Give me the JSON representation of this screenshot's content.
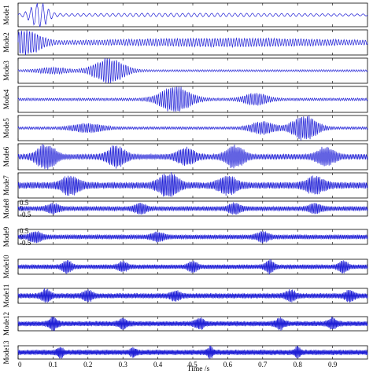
{
  "chart_data": {
    "type": "line",
    "xlabel": "Time /s",
    "xlim": [
      0,
      1.0
    ],
    "x_ticks": [
      0,
      0.1,
      0.2,
      0.3,
      0.4,
      0.5,
      0.6,
      0.7,
      0.8,
      0.9
    ],
    "x_tick_labels": [
      "0",
      "0.1",
      "0.2",
      "0.3",
      "0.4",
      "0.5",
      "0.6",
      "0.7",
      "0.8",
      "0.9"
    ],
    "line_color": "#1f1fd6",
    "series": [
      {
        "name": "Mode1",
        "carrier_cycles": 60,
        "bursts": [
          {
            "t": 0.06,
            "amp": 1.0,
            "w": 0.03
          },
          {
            "t": 0.5,
            "amp": 0.1,
            "w": 0.5
          }
        ],
        "base": 0.05
      },
      {
        "name": "Mode2",
        "carrier_cycles": 130,
        "bursts": [
          {
            "t": 0.02,
            "amp": 0.95,
            "w": 0.05
          },
          {
            "t": 0.6,
            "amp": 0.25,
            "w": 0.4
          }
        ],
        "base": 0.1
      },
      {
        "name": "Mode3",
        "carrier_cycles": 150,
        "bursts": [
          {
            "t": 0.26,
            "amp": 0.95,
            "w": 0.05
          },
          {
            "t": 0.1,
            "amp": 0.2,
            "w": 0.05
          }
        ],
        "base": 0.08
      },
      {
        "name": "Mode4",
        "carrier_cycles": 170,
        "bursts": [
          {
            "t": 0.45,
            "amp": 0.95,
            "w": 0.05
          },
          {
            "t": 0.68,
            "amp": 0.4,
            "w": 0.04
          }
        ],
        "base": 0.1
      },
      {
        "name": "Mode5",
        "carrier_cycles": 190,
        "bursts": [
          {
            "t": 0.82,
            "amp": 0.95,
            "w": 0.04
          },
          {
            "t": 0.7,
            "amp": 0.45,
            "w": 0.04
          },
          {
            "t": 0.2,
            "amp": 0.3,
            "w": 0.05
          }
        ],
        "base": 0.1
      },
      {
        "name": "Mode6",
        "carrier_cycles": 220,
        "bursts": [
          {
            "t": 0.08,
            "amp": 0.9,
            "w": 0.03
          },
          {
            "t": 0.28,
            "amp": 0.7,
            "w": 0.03
          },
          {
            "t": 0.48,
            "amp": 0.55,
            "w": 0.03
          },
          {
            "t": 0.62,
            "amp": 0.75,
            "w": 0.03
          },
          {
            "t": 0.88,
            "amp": 0.6,
            "w": 0.03
          }
        ],
        "base": 0.2
      },
      {
        "name": "Mode7",
        "carrier_cycles": 240,
        "bursts": [
          {
            "t": 0.15,
            "amp": 0.6,
            "w": 0.03
          },
          {
            "t": 0.43,
            "amp": 0.95,
            "w": 0.03
          },
          {
            "t": 0.6,
            "amp": 0.6,
            "w": 0.03
          },
          {
            "t": 0.85,
            "amp": 0.55,
            "w": 0.03
          }
        ],
        "base": 0.25
      },
      {
        "name": "Mode8",
        "carrier_cycles": 260,
        "bursts": [
          {
            "t": 0.1,
            "amp": 0.5,
            "w": 0.02
          },
          {
            "t": 0.35,
            "amp": 0.55,
            "w": 0.02
          },
          {
            "t": 0.62,
            "amp": 0.6,
            "w": 0.02
          },
          {
            "t": 0.85,
            "amp": 0.5,
            "w": 0.02
          }
        ],
        "base": 0.3
      },
      {
        "name": "Mode9",
        "carrier_cycles": 280,
        "bursts": [
          {
            "t": 0.05,
            "amp": 0.6,
            "w": 0.02
          },
          {
            "t": 0.4,
            "amp": 0.5,
            "w": 0.02
          },
          {
            "t": 0.7,
            "amp": 0.55,
            "w": 0.02
          }
        ],
        "base": 0.3
      },
      {
        "name": "Mode10",
        "carrier_cycles": 300,
        "bursts": [
          {
            "t": 0.14,
            "amp": 0.7,
            "w": 0.015
          },
          {
            "t": 0.3,
            "amp": 0.5,
            "w": 0.015
          },
          {
            "t": 0.5,
            "amp": 0.6,
            "w": 0.015
          },
          {
            "t": 0.72,
            "amp": 0.7,
            "w": 0.015
          },
          {
            "t": 0.93,
            "amp": 0.7,
            "w": 0.015
          }
        ],
        "base": 0.3
      },
      {
        "name": "Mode11",
        "carrier_cycles": 320,
        "bursts": [
          {
            "t": 0.08,
            "amp": 0.7,
            "w": 0.015
          },
          {
            "t": 0.2,
            "amp": 0.6,
            "w": 0.015
          },
          {
            "t": 0.45,
            "amp": 0.5,
            "w": 0.015
          },
          {
            "t": 0.78,
            "amp": 0.6,
            "w": 0.015
          },
          {
            "t": 0.95,
            "amp": 0.6,
            "w": 0.015
          }
        ],
        "base": 0.35
      },
      {
        "name": "Mode12",
        "carrier_cycles": 340,
        "bursts": [
          {
            "t": 0.1,
            "amp": 0.7,
            "w": 0.015
          },
          {
            "t": 0.3,
            "amp": 0.5,
            "w": 0.015
          },
          {
            "t": 0.52,
            "amp": 0.6,
            "w": 0.015
          },
          {
            "t": 0.75,
            "amp": 0.6,
            "w": 0.015
          },
          {
            "t": 0.9,
            "amp": 0.6,
            "w": 0.015
          }
        ],
        "base": 0.35
      },
      {
        "name": "Mode13",
        "carrier_cycles": 360,
        "bursts": [
          {
            "t": 0.12,
            "amp": 0.6,
            "w": 0.01
          },
          {
            "t": 0.33,
            "amp": 0.5,
            "w": 0.01
          },
          {
            "t": 0.55,
            "amp": 0.6,
            "w": 0.01
          },
          {
            "t": 0.8,
            "amp": 0.6,
            "w": 0.01
          }
        ],
        "base": 0.4
      }
    ],
    "y_ticks_small_panels": {
      "panels": [
        "Mode8",
        "Mode9"
      ],
      "labels": [
        "0.5",
        "0",
        "-0.5"
      ]
    }
  }
}
